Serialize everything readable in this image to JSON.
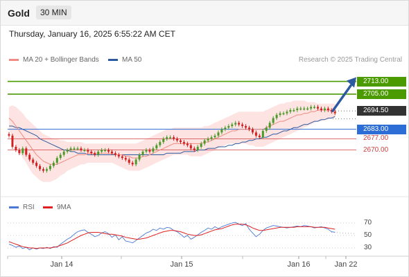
{
  "header": {
    "title": "Gold",
    "timeframe": "30 MIN"
  },
  "timestamp": "Thursday, January 16, 2025 6:55:22 AM CET",
  "legend": {
    "ma20": {
      "label": "MA 20 + Bollinger Bands",
      "color": "#f28b82"
    },
    "ma50": {
      "label": "MA 50",
      "color": "#2c5aa0"
    },
    "rsi": {
      "label": "RSI",
      "color": "#4a78d4"
    },
    "ma9": {
      "label": "9MA",
      "color": "#e02020"
    }
  },
  "credit": "Research © 2025 Trading Central",
  "colors": {
    "up": "#4a9a2a",
    "down": "#d32020",
    "target": "#4a9a00",
    "pivot": "#2c6ed5",
    "support": "#d04040",
    "last": "#333333",
    "arrow": "#2c5aa0"
  },
  "chart_data": [
    {
      "type": "candlestick",
      "ylim": [
        2649,
        2718
      ],
      "x_ticks": [
        "Jan 14",
        "Jan 15",
        "Jan 16",
        "Jan 22"
      ],
      "key_levels": [
        {
          "label": "2713.00",
          "value": 2713.0,
          "kind": "target"
        },
        {
          "label": "2705.00",
          "value": 2705.0,
          "kind": "target"
        },
        {
          "label": "2694.50",
          "value": 2694.5,
          "kind": "last"
        },
        {
          "label": "2683.00",
          "value": 2683.0,
          "kind": "pivot"
        },
        {
          "label": "2677.00",
          "value": 2677.0,
          "kind": "support"
        },
        {
          "label": "2670.00",
          "value": 2670.0,
          "kind": "support"
        }
      ],
      "close": [
        2679,
        2672,
        2670,
        2668,
        2671,
        2667,
        2664,
        2662,
        2660,
        2658,
        2657,
        2658,
        2660,
        2662,
        2665,
        2667,
        2669,
        2670,
        2671,
        2671,
        2671,
        2670,
        2670,
        2669,
        2668,
        2667,
        2669,
        2670,
        2670,
        2669,
        2668,
        2667,
        2666,
        2665,
        2664,
        2662,
        2661,
        2664,
        2667,
        2669,
        2670,
        2669,
        2671,
        2673,
        2675,
        2677,
        2678,
        2678,
        2677,
        2676,
        2675,
        2674,
        2673,
        2671,
        2670,
        2672,
        2674,
        2676,
        2677,
        2678,
        2679,
        2681,
        2683,
        2684,
        2685,
        2686,
        2687,
        2686,
        2685,
        2684,
        2683,
        2681,
        2679,
        2678,
        2682,
        2684,
        2687,
        2690,
        2692,
        2693,
        2693,
        2694,
        2695,
        2695,
        2696,
        2696,
        2696,
        2696,
        2697,
        2697,
        2696,
        2695,
        2696,
        2695,
        2694,
        2693
      ],
      "ma20": [
        2690,
        2688,
        2685,
        2682,
        2679,
        2676,
        2673,
        2670,
        2667,
        2665,
        2663,
        2662,
        2661,
        2661,
        2661,
        2662,
        2663,
        2664,
        2665,
        2666,
        2667,
        2667,
        2667,
        2668,
        2668,
        2668,
        2668,
        2668,
        2668,
        2668,
        2668,
        2667,
        2667,
        2667,
        2666,
        2666,
        2665,
        2665,
        2665,
        2666,
        2666,
        2667,
        2668,
        2669,
        2670,
        2671,
        2672,
        2673,
        2674,
        2674,
        2674,
        2674,
        2674,
        2674,
        2674,
        2674,
        2674,
        2675,
        2675,
        2676,
        2677,
        2678,
        2679,
        2680,
        2681,
        2682,
        2682,
        2683,
        2683,
        2683,
        2683,
        2683,
        2683,
        2683,
        2683,
        2684,
        2685,
        2686,
        2687,
        2688,
        2688,
        2689,
        2690,
        2691,
        2692,
        2692,
        2693,
        2693,
        2694,
        2694,
        2695,
        2695,
        2695,
        2695,
        2695,
        2695
      ],
      "ma50": [
        2685,
        2685,
        2684,
        2684,
        2683,
        2682,
        2681,
        2680,
        2679,
        2677,
        2676,
        2675,
        2674,
        2673,
        2672,
        2671,
        2670,
        2670,
        2669,
        2669,
        2668,
        2668,
        2668,
        2667,
        2667,
        2667,
        2667,
        2667,
        2667,
        2667,
        2667,
        2667,
        2667,
        2667,
        2667,
        2667,
        2667,
        2667,
        2667,
        2667,
        2667,
        2667,
        2667,
        2667,
        2667,
        2667,
        2668,
        2668,
        2668,
        2668,
        2668,
        2669,
        2669,
        2669,
        2669,
        2670,
        2670,
        2670,
        2671,
        2671,
        2671,
        2672,
        2672,
        2672,
        2673,
        2673,
        2674,
        2674,
        2675,
        2675,
        2676,
        2676,
        2677,
        2677,
        2678,
        2678,
        2679,
        2680,
        2680,
        2681,
        2682,
        2682,
        2683,
        2684,
        2684,
        2685,
        2686,
        2686,
        2687,
        2688,
        2688,
        2689,
        2689,
        2690,
        2690,
        2691
      ],
      "bb_upper": [
        2697,
        2698,
        2697,
        2695,
        2693,
        2690,
        2688,
        2686,
        2684,
        2682,
        2680,
        2679,
        2678,
        2677,
        2677,
        2676,
        2676,
        2675,
        2675,
        2675,
        2675,
        2675,
        2674,
        2674,
        2674,
        2674,
        2674,
        2674,
        2674,
        2674,
        2674,
        2674,
        2674,
        2674,
        2674,
        2674,
        2674,
        2674,
        2675,
        2676,
        2677,
        2678,
        2679,
        2680,
        2681,
        2682,
        2683,
        2683,
        2684,
        2684,
        2684,
        2684,
        2684,
        2684,
        2684,
        2684,
        2684,
        2685,
        2685,
        2686,
        2687,
        2688,
        2689,
        2690,
        2691,
        2692,
        2693,
        2694,
        2694,
        2694,
        2694,
        2694,
        2694,
        2694,
        2694,
        2695,
        2696,
        2697,
        2698,
        2699,
        2699,
        2700,
        2700,
        2701,
        2701,
        2701,
        2701,
        2700,
        2700,
        2700,
        2699,
        2699,
        2699,
        2699,
        2699,
        2699
      ],
      "bb_lower": [
        2683,
        2678,
        2673,
        2669,
        2665,
        2662,
        2658,
        2655,
        2653,
        2651,
        2650,
        2650,
        2650,
        2651,
        2652,
        2654,
        2655,
        2657,
        2658,
        2659,
        2660,
        2661,
        2661,
        2662,
        2662,
        2662,
        2662,
        2662,
        2662,
        2662,
        2662,
        2661,
        2660,
        2659,
        2658,
        2657,
        2657,
        2657,
        2657,
        2658,
        2659,
        2660,
        2661,
        2662,
        2663,
        2664,
        2665,
        2666,
        2667,
        2667,
        2667,
        2667,
        2667,
        2666,
        2666,
        2666,
        2666,
        2667,
        2668,
        2669,
        2670,
        2671,
        2672,
        2673,
        2674,
        2674,
        2674,
        2674,
        2674,
        2674,
        2673,
        2673,
        2672,
        2672,
        2672,
        2673,
        2674,
        2675,
        2676,
        2677,
        2678,
        2679,
        2680,
        2681,
        2682,
        2683,
        2684,
        2685,
        2686,
        2687,
        2688,
        2688,
        2689,
        2689,
        2690,
        2690
      ]
    },
    {
      "type": "line",
      "ylim": [
        20,
        80
      ],
      "y_ticks": [
        "70",
        "50",
        "30"
      ],
      "rsi": [
        36,
        34,
        31,
        33,
        29,
        31,
        27,
        30,
        28,
        30,
        29,
        31,
        29,
        32,
        31,
        36,
        40,
        44,
        47,
        52,
        56,
        58,
        59,
        55,
        52,
        48,
        50,
        54,
        56,
        53,
        47,
        51,
        43,
        48,
        41,
        40,
        38,
        42,
        46,
        50,
        54,
        56,
        60,
        58,
        62,
        60,
        63,
        62,
        58,
        56,
        52,
        47,
        50,
        44,
        47,
        51,
        55,
        58,
        62,
        60,
        64,
        61,
        64,
        66,
        68,
        70,
        71,
        68,
        66,
        69,
        60,
        54,
        48,
        52,
        58,
        62,
        64,
        66,
        65,
        64,
        63,
        62,
        63,
        64,
        65,
        64,
        66,
        65,
        64,
        62,
        63,
        64,
        62,
        60,
        56,
        55
      ],
      "ma9": [
        40,
        38,
        36,
        34,
        32,
        31,
        30,
        30,
        29,
        30,
        30,
        30,
        30,
        31,
        32,
        34,
        36,
        38,
        41,
        44,
        47,
        50,
        52,
        54,
        55,
        55,
        55,
        54,
        53,
        52,
        52,
        51,
        50,
        49,
        47,
        46,
        45,
        44,
        44,
        45,
        46,
        48,
        50,
        52,
        54,
        56,
        57,
        58,
        58,
        57,
        56,
        54,
        52,
        51,
        50,
        50,
        51,
        53,
        55,
        57,
        59,
        60,
        61,
        63,
        65,
        67,
        68,
        68,
        68,
        67,
        65,
        62,
        60,
        58,
        58,
        59,
        60,
        61,
        62,
        63,
        63,
        63,
        63,
        63,
        64,
        64,
        64,
        64,
        64,
        63,
        63,
        63,
        63,
        62,
        61,
        60
      ]
    }
  ]
}
